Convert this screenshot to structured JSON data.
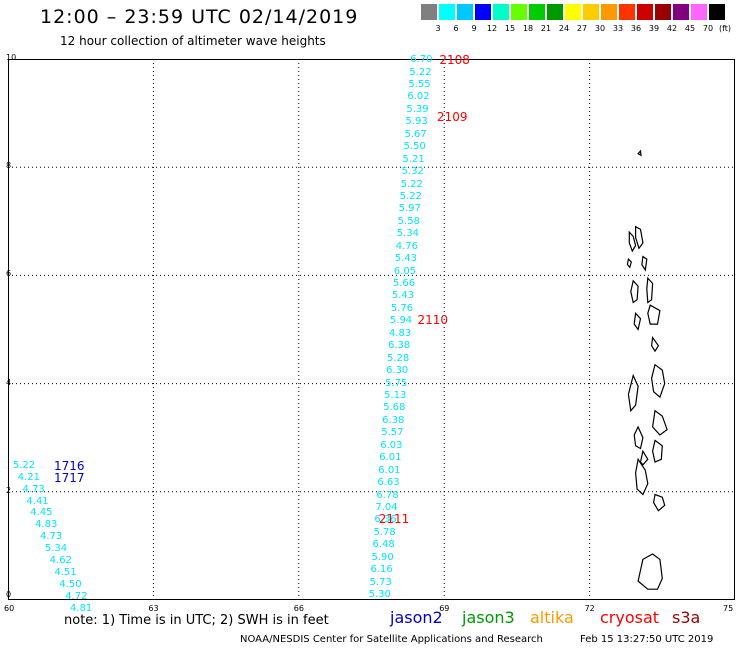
{
  "title": "12:00 – 23:59 UTC 02/14/2019",
  "subtitle": "12 hour collection of altimeter wave heights",
  "scale": {
    "unit": "(ft)",
    "colors": [
      "#808080",
      "#00ffff",
      "#00c8ff",
      "#0000ff",
      "#00ffc8",
      "#66ff00",
      "#00cc00",
      "#009900",
      "#ffff00",
      "#ffcc00",
      "#ff9900",
      "#ff3300",
      "#cc0000",
      "#990000",
      "#800080",
      "#ff66ff",
      "#000000"
    ],
    "labels": [
      "3",
      "6",
      "9",
      "12",
      "15",
      "18",
      "21",
      "24",
      "27",
      "30",
      "33",
      "36",
      "39",
      "42",
      "45",
      "70"
    ]
  },
  "axes": {
    "x_ticks": [
      {
        "value": 60,
        "label": "60"
      },
      {
        "value": 63,
        "label": "63"
      },
      {
        "value": 66,
        "label": "66"
      },
      {
        "value": 69,
        "label": "69"
      },
      {
        "value": 72,
        "label": "72"
      },
      {
        "value": 75,
        "label": "75"
      }
    ],
    "y_ticks": [
      {
        "value": 0,
        "label": "0"
      },
      {
        "value": 2,
        "label": "2"
      },
      {
        "value": 4,
        "label": "4"
      },
      {
        "value": 6,
        "label": "6"
      },
      {
        "value": 8,
        "label": "8"
      },
      {
        "value": 10,
        "label": "10"
      }
    ],
    "xlim": [
      60,
      75
    ],
    "ylim": [
      0,
      10
    ],
    "grid": true
  },
  "measurement_color": "#00e5ff",
  "tracks": [
    {
      "label": "2108",
      "color": "#ff0000",
      "lon": 68.9,
      "lat": 9.98
    },
    {
      "label": "2109",
      "color": "#ff0000",
      "lon": 68.85,
      "lat": 8.92
    },
    {
      "label": "2110",
      "color": "#ff0000",
      "lon": 68.45,
      "lat": 5.18
    },
    {
      "label": "2111",
      "color": "#ff0000",
      "lon": 67.65,
      "lat": 1.5
    },
    {
      "label": "1716",
      "color": "#0000cc",
      "lon": 60.95,
      "lat": 2.48
    },
    {
      "label": "1717",
      "color": "#0000cc",
      "lon": 60.95,
      "lat": 2.26
    }
  ],
  "measurements": [
    {
      "v": "6.70",
      "lon": 68.3,
      "lat": 9.98
    },
    {
      "v": "5.22",
      "lon": 68.28,
      "lat": 9.75
    },
    {
      "v": "5.55",
      "lon": 68.26,
      "lat": 9.52
    },
    {
      "v": "6.02",
      "lon": 68.24,
      "lat": 9.29
    },
    {
      "v": "5.39",
      "lon": 68.22,
      "lat": 9.06
    },
    {
      "v": "5.93",
      "lon": 68.2,
      "lat": 8.83
    },
    {
      "v": "5.67",
      "lon": 68.18,
      "lat": 8.6
    },
    {
      "v": "5.50",
      "lon": 68.16,
      "lat": 8.37
    },
    {
      "v": "5.21",
      "lon": 68.14,
      "lat": 8.14
    },
    {
      "v": "5.32",
      "lon": 68.12,
      "lat": 7.91
    },
    {
      "v": "5.22",
      "lon": 68.1,
      "lat": 7.68
    },
    {
      "v": "5.22",
      "lon": 68.08,
      "lat": 7.45
    },
    {
      "v": "5.97",
      "lon": 68.06,
      "lat": 7.22
    },
    {
      "v": "5.58",
      "lon": 68.04,
      "lat": 6.99
    },
    {
      "v": "5.34",
      "lon": 68.02,
      "lat": 6.76
    },
    {
      "v": "4.76",
      "lon": 68.0,
      "lat": 6.53
    },
    {
      "v": "5.43",
      "lon": 67.98,
      "lat": 6.3
    },
    {
      "v": "6.05",
      "lon": 67.96,
      "lat": 6.07
    },
    {
      "v": "5.66",
      "lon": 67.94,
      "lat": 5.84
    },
    {
      "v": "5.43",
      "lon": 67.92,
      "lat": 5.61
    },
    {
      "v": "5.76",
      "lon": 67.9,
      "lat": 5.38
    },
    {
      "v": "5.94",
      "lon": 67.88,
      "lat": 5.15
    },
    {
      "v": "4.83",
      "lon": 67.86,
      "lat": 4.92
    },
    {
      "v": "6.38",
      "lon": 67.84,
      "lat": 4.69
    },
    {
      "v": "5.28",
      "lon": 67.82,
      "lat": 4.46
    },
    {
      "v": "6.30",
      "lon": 67.8,
      "lat": 4.23
    },
    {
      "v": "5.75",
      "lon": 67.78,
      "lat": 4.0
    },
    {
      "v": "5.13",
      "lon": 67.76,
      "lat": 3.77
    },
    {
      "v": "5.68",
      "lon": 67.74,
      "lat": 3.54
    },
    {
      "v": "6.38",
      "lon": 67.72,
      "lat": 3.31
    },
    {
      "v": "5.57",
      "lon": 67.7,
      "lat": 3.08
    },
    {
      "v": "6.03",
      "lon": 67.68,
      "lat": 2.85
    },
    {
      "v": "6.01",
      "lon": 67.66,
      "lat": 2.62
    },
    {
      "v": "6.01",
      "lon": 67.64,
      "lat": 2.39
    },
    {
      "v": "6.63",
      "lon": 67.62,
      "lat": 2.16
    },
    {
      "v": "6.78",
      "lon": 67.6,
      "lat": 1.93
    },
    {
      "v": "7.04",
      "lon": 67.58,
      "lat": 1.7
    },
    {
      "v": "6.36",
      "lon": 67.56,
      "lat": 1.47
    },
    {
      "v": "5.78",
      "lon": 67.54,
      "lat": 1.24
    },
    {
      "v": "6.48",
      "lon": 67.52,
      "lat": 1.01
    },
    {
      "v": "5.90",
      "lon": 67.5,
      "lat": 0.78
    },
    {
      "v": "6.16",
      "lon": 67.48,
      "lat": 0.55
    },
    {
      "v": "5.73",
      "lon": 67.46,
      "lat": 0.32
    },
    {
      "v": "5.30",
      "lon": 67.44,
      "lat": 0.09
    },
    {
      "v": "5.22",
      "lon": 60.1,
      "lat": 2.48
    },
    {
      "v": "4.21",
      "lon": 60.2,
      "lat": 2.26
    },
    {
      "v": "4.73",
      "lon": 60.3,
      "lat": 2.04
    },
    {
      "v": "4.41",
      "lon": 60.38,
      "lat": 1.82
    },
    {
      "v": "4.45",
      "lon": 60.46,
      "lat": 1.6
    },
    {
      "v": "4.83",
      "lon": 60.56,
      "lat": 1.38
    },
    {
      "v": "4.73",
      "lon": 60.66,
      "lat": 1.16
    },
    {
      "v": "5.34",
      "lon": 60.76,
      "lat": 0.94
    },
    {
      "v": "4.62",
      "lon": 60.86,
      "lat": 0.72
    },
    {
      "v": "4.51",
      "lon": 60.96,
      "lat": 0.5
    },
    {
      "v": "4.50",
      "lon": 61.06,
      "lat": 0.28
    },
    {
      "v": "4.72",
      "lon": 61.18,
      "lat": 0.06
    },
    {
      "v": "4.81",
      "lon": 61.28,
      "lat": -0.16
    }
  ],
  "islands": [
    [
      [
        73.0,
        8.25
      ],
      [
        73.05,
        8.3
      ],
      [
        73.06,
        8.22
      ],
      [
        73.0,
        8.25
      ]
    ],
    [
      [
        72.82,
        6.8
      ],
      [
        72.9,
        6.72
      ],
      [
        72.95,
        6.55
      ],
      [
        72.88,
        6.45
      ],
      [
        72.82,
        6.6
      ],
      [
        72.82,
        6.8
      ]
    ],
    [
      [
        72.95,
        6.9
      ],
      [
        73.05,
        6.85
      ],
      [
        73.1,
        6.6
      ],
      [
        73.02,
        6.5
      ],
      [
        72.95,
        6.7
      ],
      [
        72.95,
        6.9
      ]
    ],
    [
      [
        73.1,
        6.35
      ],
      [
        73.18,
        6.3
      ],
      [
        73.15,
        6.1
      ],
      [
        73.08,
        6.2
      ],
      [
        73.1,
        6.35
      ]
    ],
    [
      [
        72.8,
        6.3
      ],
      [
        72.86,
        6.25
      ],
      [
        72.83,
        6.15
      ],
      [
        72.78,
        6.2
      ],
      [
        72.8,
        6.3
      ]
    ],
    [
      [
        73.2,
        5.95
      ],
      [
        73.3,
        5.85
      ],
      [
        73.28,
        5.55
      ],
      [
        73.2,
        5.5
      ],
      [
        73.18,
        5.75
      ],
      [
        73.2,
        5.95
      ]
    ],
    [
      [
        72.9,
        5.9
      ],
      [
        73.0,
        5.8
      ],
      [
        72.98,
        5.55
      ],
      [
        72.9,
        5.5
      ],
      [
        72.85,
        5.7
      ],
      [
        72.9,
        5.9
      ]
    ],
    [
      [
        73.25,
        5.45
      ],
      [
        73.45,
        5.35
      ],
      [
        73.4,
        5.1
      ],
      [
        73.25,
        5.1
      ],
      [
        73.2,
        5.3
      ],
      [
        73.25,
        5.45
      ]
    ],
    [
      [
        72.95,
        5.3
      ],
      [
        73.05,
        5.2
      ],
      [
        73.0,
        5.0
      ],
      [
        72.92,
        5.1
      ],
      [
        72.95,
        5.3
      ]
    ],
    [
      [
        73.3,
        4.85
      ],
      [
        73.42,
        4.7
      ],
      [
        73.35,
        4.6
      ],
      [
        73.28,
        4.7
      ],
      [
        73.3,
        4.85
      ]
    ],
    [
      [
        73.35,
        4.35
      ],
      [
        73.5,
        4.25
      ],
      [
        73.55,
        4.0
      ],
      [
        73.45,
        3.75
      ],
      [
        73.32,
        3.85
      ],
      [
        73.28,
        4.1
      ],
      [
        73.35,
        4.35
      ]
    ],
    [
      [
        72.9,
        4.15
      ],
      [
        73.0,
        3.95
      ],
      [
        72.95,
        3.6
      ],
      [
        72.85,
        3.5
      ],
      [
        72.8,
        3.8
      ],
      [
        72.9,
        4.15
      ]
    ],
    [
      [
        73.35,
        3.5
      ],
      [
        73.5,
        3.4
      ],
      [
        73.6,
        3.15
      ],
      [
        73.45,
        3.05
      ],
      [
        73.3,
        3.2
      ],
      [
        73.35,
        3.5
      ]
    ],
    [
      [
        73.0,
        3.2
      ],
      [
        73.1,
        3.0
      ],
      [
        73.05,
        2.8
      ],
      [
        72.95,
        2.85
      ],
      [
        72.92,
        3.05
      ],
      [
        73.0,
        3.2
      ]
    ],
    [
      [
        73.35,
        2.95
      ],
      [
        73.5,
        2.85
      ],
      [
        73.48,
        2.6
      ],
      [
        73.35,
        2.55
      ],
      [
        73.3,
        2.75
      ],
      [
        73.35,
        2.95
      ]
    ],
    [
      [
        73.1,
        2.75
      ],
      [
        73.2,
        2.6
      ],
      [
        73.1,
        2.5
      ],
      [
        73.05,
        2.55
      ],
      [
        73.1,
        2.75
      ]
    ],
    [
      [
        73.0,
        2.6
      ],
      [
        73.15,
        2.4
      ],
      [
        73.2,
        2.15
      ],
      [
        73.1,
        1.95
      ],
      [
        72.98,
        2.05
      ],
      [
        72.95,
        2.35
      ],
      [
        73.0,
        2.6
      ]
    ],
    [
      [
        73.35,
        1.95
      ],
      [
        73.5,
        1.9
      ],
      [
        73.55,
        1.75
      ],
      [
        73.42,
        1.65
      ],
      [
        73.32,
        1.8
      ],
      [
        73.35,
        1.95
      ]
    ],
    [
      [
        73.1,
        0.75
      ],
      [
        73.3,
        0.85
      ],
      [
        73.45,
        0.75
      ],
      [
        73.5,
        0.4
      ],
      [
        73.4,
        0.2
      ],
      [
        73.2,
        0.2
      ],
      [
        73.0,
        0.35
      ],
      [
        73.1,
        0.75
      ]
    ]
  ],
  "note": "note:  1) Time is in UTC;  2) SWH is in feet",
  "satellites": [
    {
      "name": "jason2",
      "color": "#0000cc"
    },
    {
      "name": "jason3",
      "color": "#009900"
    },
    {
      "name": "altika",
      "color": "#ff9900"
    },
    {
      "name": "cryosat",
      "color": "#ff0000"
    },
    {
      "name": "s3a",
      "color": "#990000"
    }
  ],
  "credit": "NOAA/NESDIS Center for Satellite Applications and Research",
  "timestamp": "Feb 15 13:27:50 UTC 2019"
}
